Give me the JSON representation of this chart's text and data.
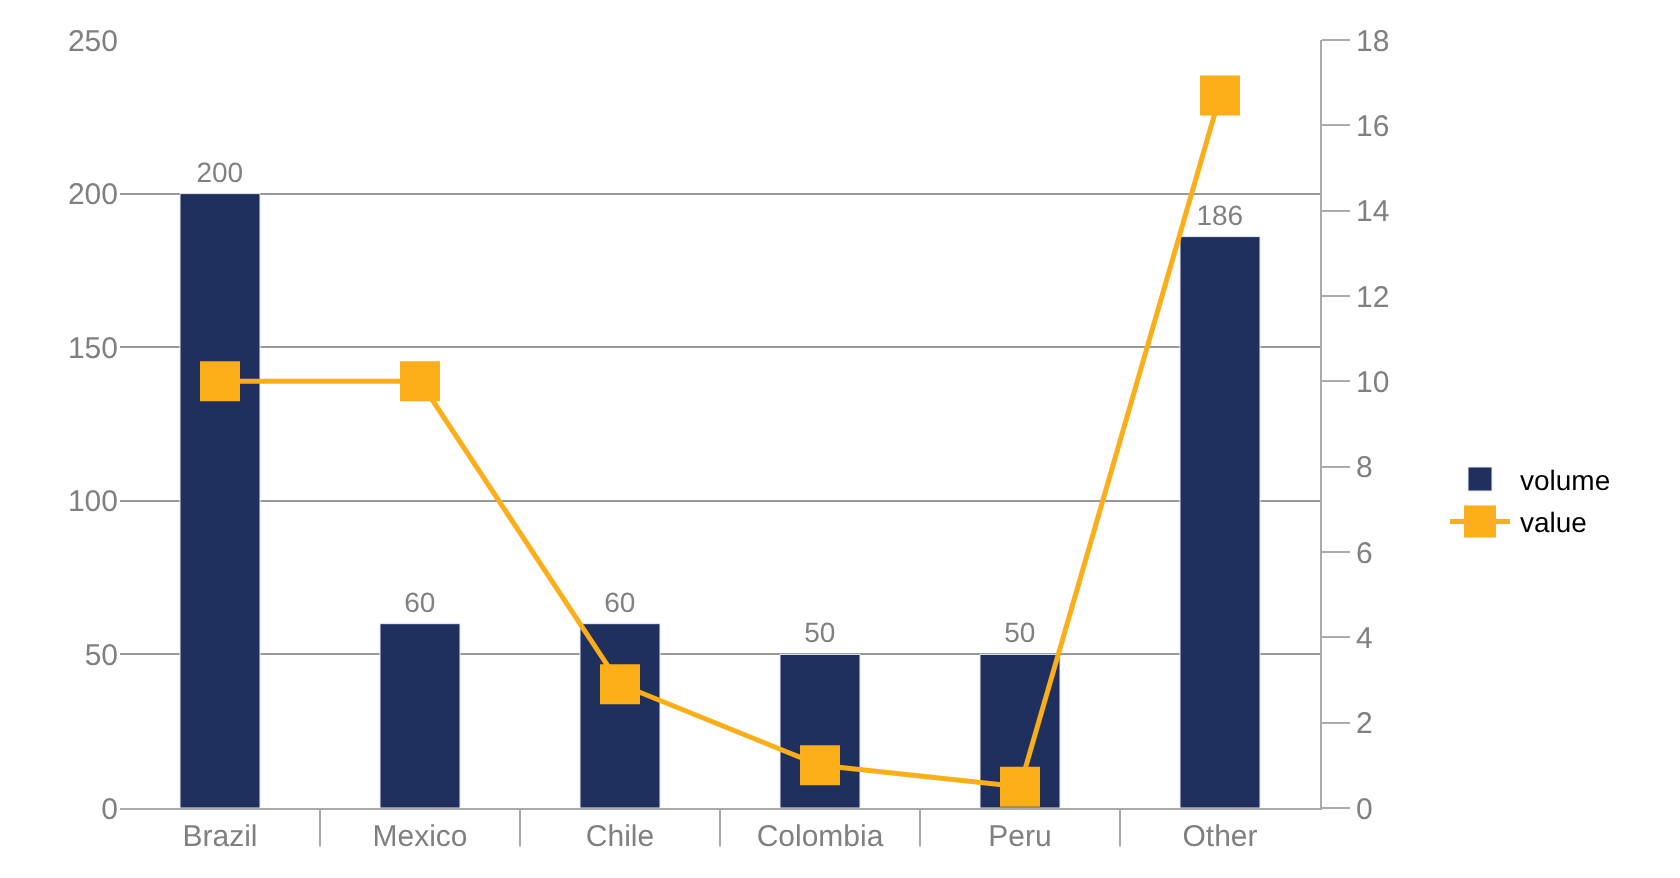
{
  "chart_data": {
    "type": "bar",
    "categories": [
      "Brazil",
      "Mexico",
      "Chile",
      "Colombia",
      "Peru",
      "Other"
    ],
    "series": [
      {
        "name": "volume",
        "color": "#1f2f5e",
        "values": [
          200,
          60,
          60,
          50,
          50,
          186
        ],
        "value_labels": [
          "200",
          "60",
          "60",
          "50",
          "50",
          "186"
        ]
      },
      {
        "name": "value",
        "type": "line",
        "axis": "y2",
        "color": "#fbae17",
        "values": [
          10,
          10,
          2.9,
          1,
          0.5,
          16.7
        ]
      }
    ],
    "ylim": [
      0,
      250
    ],
    "yticks": [
      0,
      50,
      100,
      150,
      200,
      250
    ],
    "y2lim": [
      0,
      18
    ],
    "y2ticks": [
      0,
      2,
      4,
      6,
      8,
      10,
      12,
      14,
      16,
      18
    ],
    "grid": "y",
    "legend": "right",
    "marker": "square"
  }
}
